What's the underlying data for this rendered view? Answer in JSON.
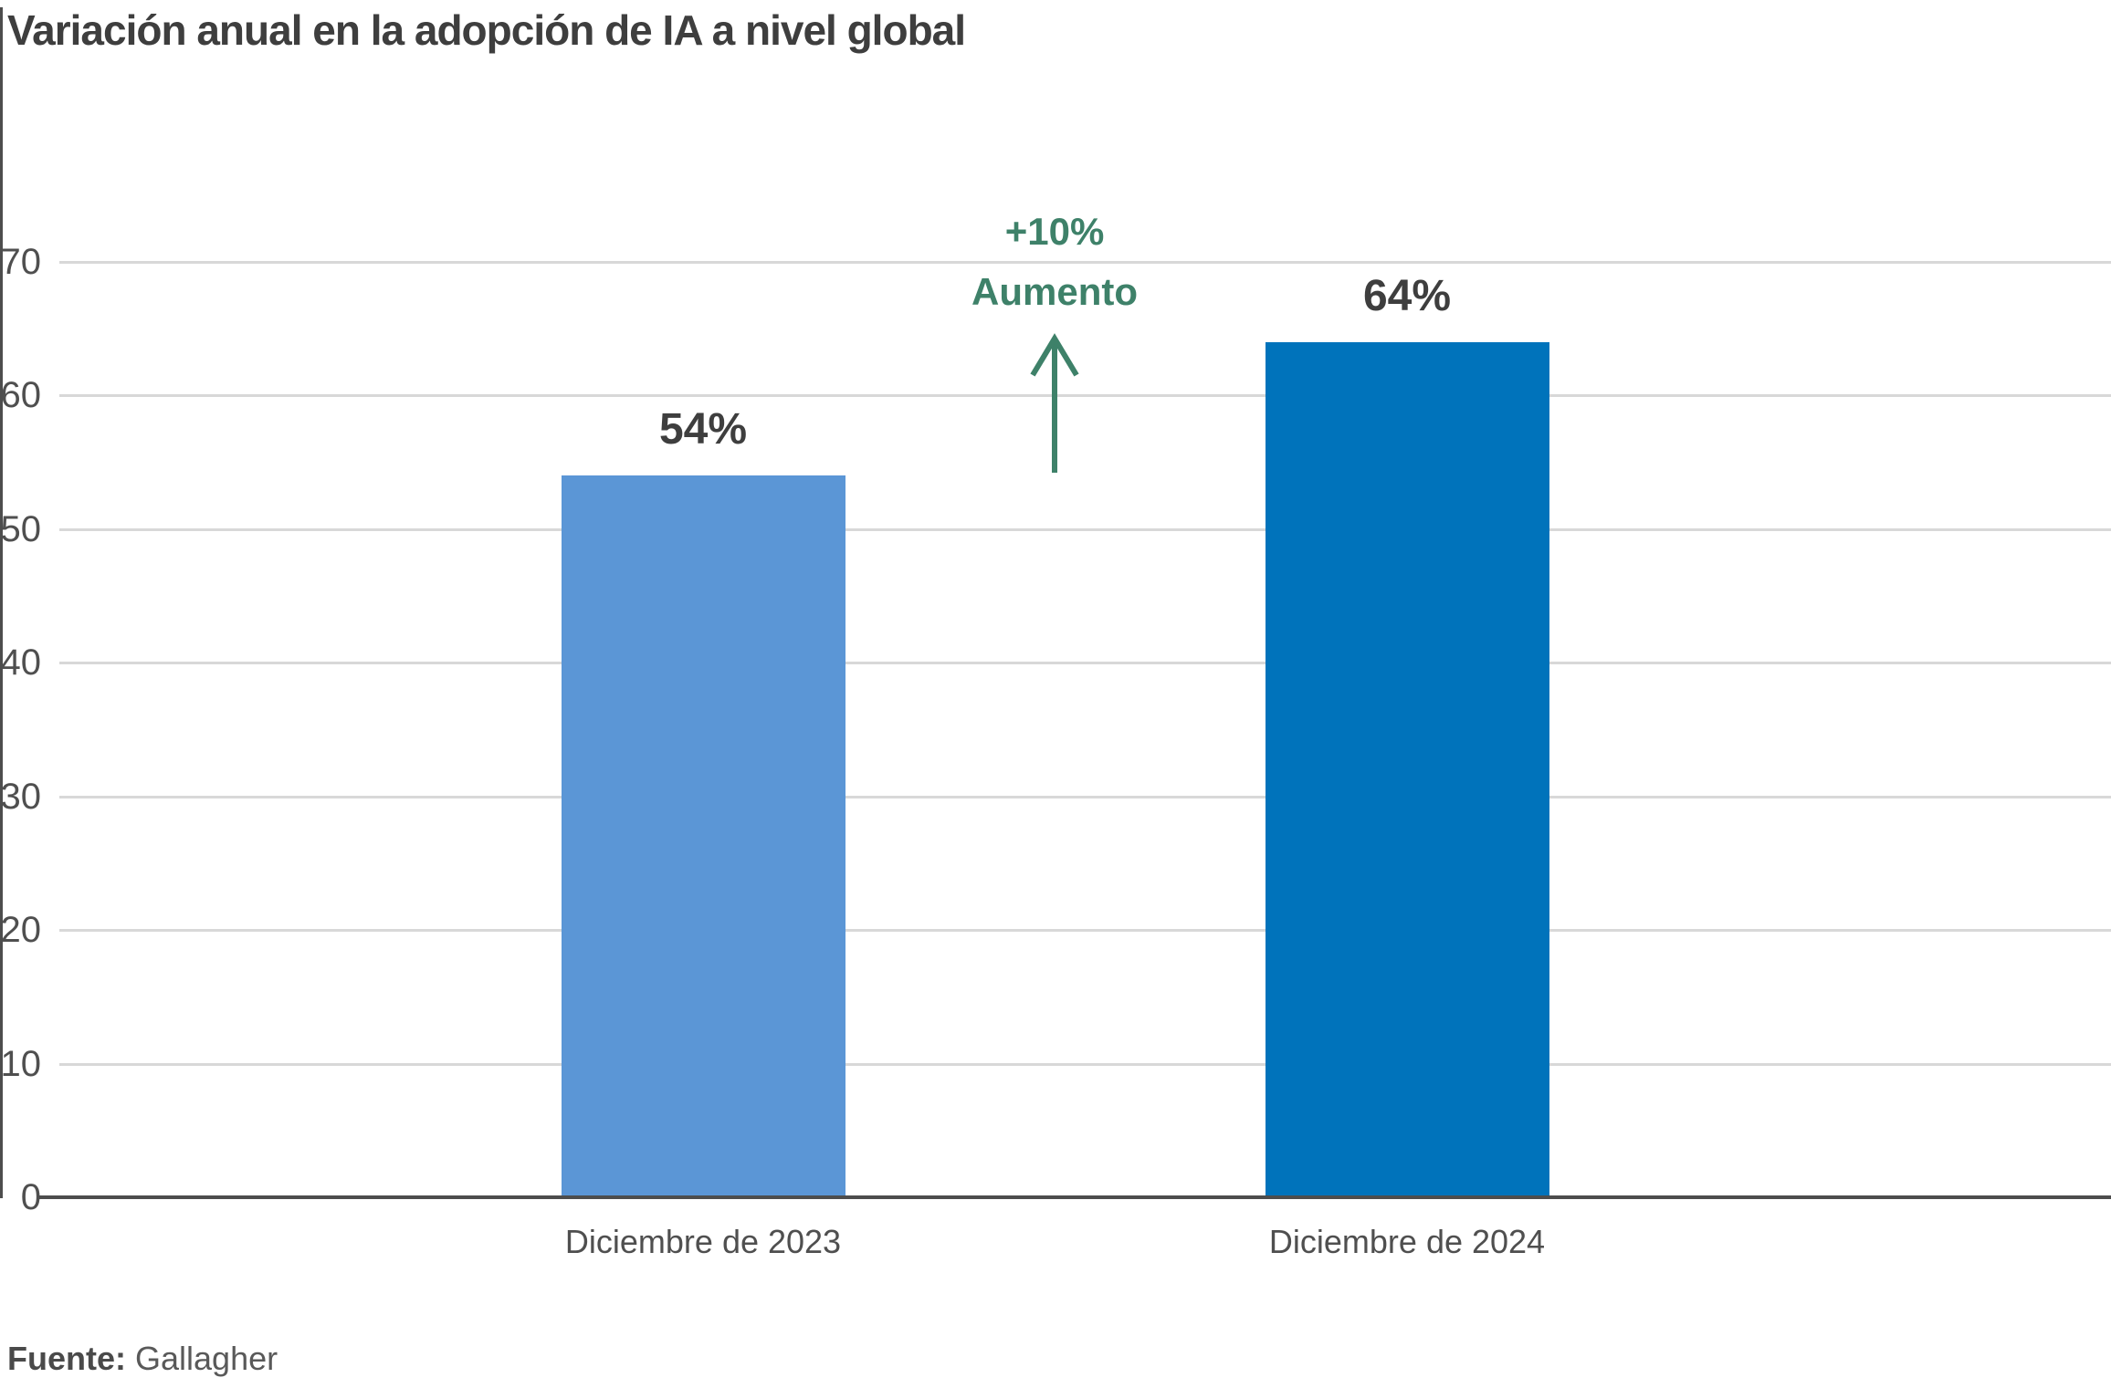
{
  "title": "Variación anual en la adopción de IA a nivel global",
  "source": {
    "label": "Fuente:",
    "value": " Gallagher"
  },
  "annotation": {
    "line1": "+10%",
    "line2": "Aumento",
    "color": "#3e8169"
  },
  "colors": {
    "bar_2023": "#5b96d6",
    "bar_2024": "#0073bb",
    "gridline": "#d8d8d8",
    "axis": "#4d4d4d",
    "text_dark": "#3e3e3e",
    "text_gray": "#4f4f4f",
    "annotation_green": "#3e8169"
  },
  "chart_data": {
    "type": "bar",
    "title": "Variación anual en la adopción de IA a nivel global",
    "categories": [
      "Diciembre de 2023",
      "Diciembre de 2024"
    ],
    "values": [
      54,
      64
    ],
    "value_labels": [
      "54%",
      "64%"
    ],
    "bar_colors": [
      "#5b96d6",
      "#0073bb"
    ],
    "xlabel": "",
    "ylabel": "",
    "ylim": [
      0,
      70
    ],
    "yticks": [
      0,
      10,
      20,
      30,
      40,
      50,
      60,
      70
    ],
    "grid": "horizontal-only",
    "legend": "none",
    "annotation": {
      "text": "+10% Aumento",
      "color": "#3e8169",
      "arrow_direction": "up",
      "position": "between bars, above 70 gridline"
    },
    "source": "Fuente: Gallagher"
  }
}
